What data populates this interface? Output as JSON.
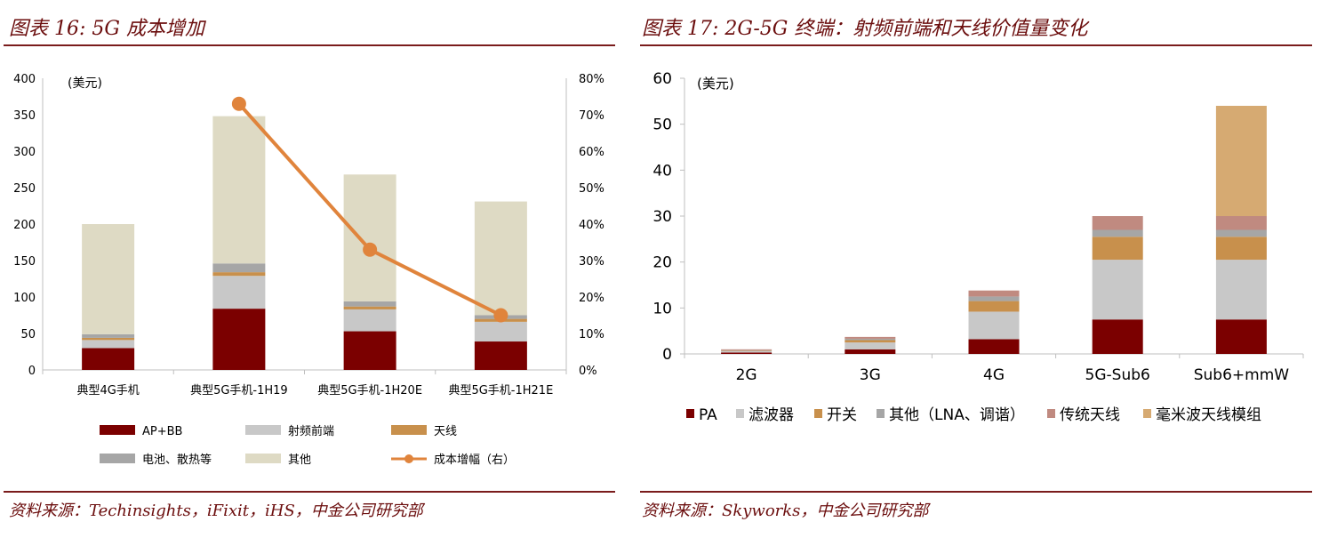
{
  "left": {
    "title": "图表 16: 5G 成本增加",
    "source": "资料来源：Techinsights，iFixit，iHS，中金公司研究部"
  },
  "right": {
    "title": "图表 17: 2G-5G 终端：射频前端和天线价值量变化",
    "source": "资料来源：Skyworks，中金公司研究部"
  },
  "chart_data": [
    {
      "type": "bar",
      "stacked": true,
      "unit_label": "(美元)",
      "categories": [
        "典型4G手机",
        "典型5G手机-1H19",
        "典型5G手机-1H20E",
        "典型5G手机-1H21E"
      ],
      "ylim": [
        0,
        400
      ],
      "y_ticks": [
        "0",
        "50",
        "100",
        "150",
        "200",
        "250",
        "300",
        "350",
        "400"
      ],
      "y2lim": [
        0,
        0.8
      ],
      "y2_ticks": [
        "0%",
        "10%",
        "20%",
        "30%",
        "40%",
        "50%",
        "60%",
        "70%",
        "80%"
      ],
      "series": [
        {
          "name": "AP+BB",
          "color": "#7b0000",
          "values": [
            30,
            84,
            53,
            39
          ]
        },
        {
          "name": "射频前端",
          "color": "#c8c8c8",
          "values": [
            11,
            45,
            30,
            27
          ]
        },
        {
          "name": "天线",
          "color": "#c8904c",
          "values": [
            3,
            5,
            4,
            4
          ]
        },
        {
          "name": "电池、散热等",
          "color": "#a6a6a6",
          "values": [
            5,
            12,
            7,
            5
          ]
        },
        {
          "name": "其他",
          "color": "#dedac4",
          "values": [
            151,
            202,
            174,
            156
          ]
        }
      ],
      "line_series": {
        "name": "成本增幅（右）",
        "color": "#e0843c",
        "categories_index": [
          1,
          2,
          3
        ],
        "values": [
          0.73,
          0.33,
          0.15
        ]
      },
      "legend_position": "bottom"
    },
    {
      "type": "bar",
      "stacked": true,
      "unit_label": "(美元)",
      "categories": [
        "2G",
        "3G",
        "4G",
        "5G-Sub6",
        "Sub6+mmW"
      ],
      "ylim": [
        0,
        60
      ],
      "y_ticks": [
        "0",
        "10",
        "20",
        "30",
        "40",
        "50",
        "60"
      ],
      "series": [
        {
          "name": "PA",
          "color": "#7b0000",
          "values": [
            0.3,
            1.0,
            3.2,
            7.5,
            7.5
          ]
        },
        {
          "name": "滤波器",
          "color": "#c8c8c8",
          "values": [
            0.3,
            1.5,
            6.0,
            13.0,
            13.0
          ]
        },
        {
          "name": "开关",
          "color": "#c8904c",
          "values": [
            0.1,
            0.5,
            2.3,
            5.0,
            5.0
          ]
        },
        {
          "name": "其他（LNA、调谐）",
          "color": "#a6a6a6",
          "values": [
            0.1,
            0.3,
            1.0,
            1.5,
            1.5
          ]
        },
        {
          "name": "传统天线",
          "color": "#c08a80",
          "values": [
            0.2,
            0.4,
            1.3,
            3.0,
            3.0
          ]
        },
        {
          "name": "毫米波天线模组",
          "color": "#d6aa72",
          "values": [
            0,
            0,
            0,
            0,
            24.0
          ]
        }
      ],
      "legend_position": "bottom"
    }
  ]
}
